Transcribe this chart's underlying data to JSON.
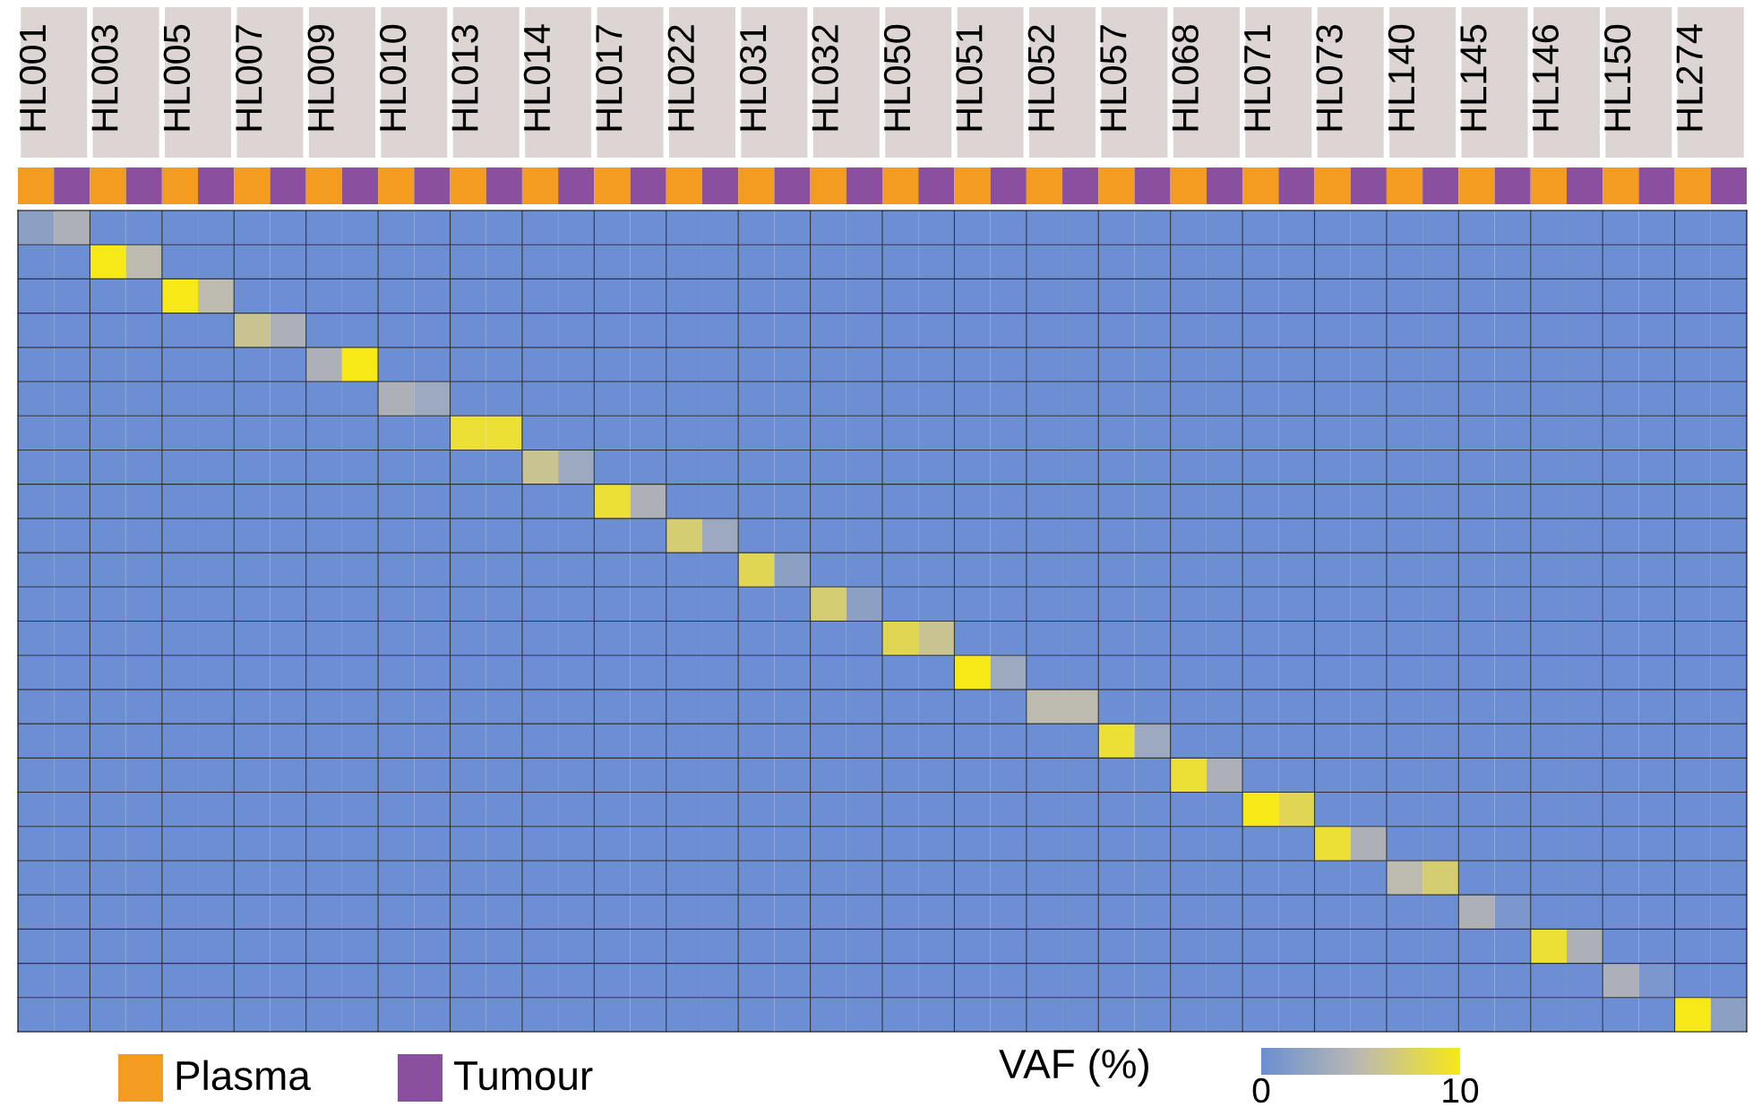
{
  "chart_data": {
    "type": "heatmap",
    "categories": [
      "HL001",
      null,
      "HL003",
      null,
      "HL005",
      null,
      "HL007",
      null,
      "HL009",
      null,
      "HL010",
      null,
      "HL013",
      null,
      "HL014",
      null,
      "HL017",
      null,
      "HL022",
      null,
      "HL031",
      null,
      "HL032",
      null,
      "HL050",
      null,
      "HL051",
      null,
      "HL052",
      null,
      "HL057",
      null,
      "HL068",
      null,
      "HL071",
      null,
      "HL073",
      null,
      "HL140",
      null,
      "HL145",
      null,
      "HL146",
      null,
      "HL150",
      null,
      "HL274",
      null
    ],
    "colors": [
      "#f39c1f",
      "#8b4f9f",
      "#f39c1f",
      "#8b4f9f",
      "#f39c1f",
      "#8b4f9f",
      "#f39c1f",
      "#8b4f9f",
      "#f39c1f",
      "#8b4f9f",
      "#f39c1f",
      "#8b4f9f",
      "#f39c1f",
      "#8b4f9f",
      "#f39c1f",
      "#8b4f9f",
      "#f39c1f",
      "#8b4f9f",
      "#f39c1f",
      "#8b4f9f",
      "#f39c1f",
      "#8b4f9f",
      "#f39c1f",
      "#8b4f9f",
      "#f39c1f",
      "#8b4f9f",
      "#f39c1f",
      "#8b4f9f",
      "#f39c1f",
      "#8b4f9f",
      "#f39c1f",
      "#8b4f9f",
      "#f39c1f",
      "#8b4f9f",
      "#f39c1f",
      "#8b4f9f",
      "#f39c1f",
      "#8b4f9f",
      "#f39c1f",
      "#8b4f9f",
      "#f39c1f",
      "#8b4f9f",
      "#f39c1f",
      "#8b4f9f",
      "#f39c1f",
      "#8b4f9f",
      "#f39c1f",
      "#8b4f9f"
    ],
    "annotations": [
      "Plasma",
      "Tumour"
    ],
    "y_categories": [
      null,
      null,
      null,
      null,
      null,
      null,
      null,
      null,
      null,
      null,
      null,
      null,
      null,
      null,
      null,
      null,
      null,
      null,
      null,
      null,
      null,
      null,
      null,
      null
    ],
    "clabel": "VAF (%)",
    "clim": [
      0,
      10
    ],
    "cticks": [
      0,
      10
    ],
    "grid": true,
    "cells": [
      [
        2,
        4,
        0,
        0,
        0,
        0,
        0,
        0,
        0,
        0,
        0,
        0,
        0,
        0,
        0,
        0,
        0,
        0,
        0,
        0,
        0,
        0,
        0,
        0,
        0,
        0,
        0,
        0,
        0,
        0,
        0,
        0,
        0,
        0,
        0,
        0,
        0,
        0,
        0,
        0,
        0,
        0,
        0,
        0,
        0,
        0,
        0,
        0
      ],
      [
        0,
        0,
        10,
        5,
        0,
        0,
        0,
        0,
        0,
        0,
        0,
        0,
        0,
        0,
        0,
        0,
        0,
        0,
        0,
        0,
        0,
        0,
        0,
        0,
        0,
        0,
        0,
        0,
        0,
        0,
        0,
        0,
        0,
        0,
        0,
        0,
        0,
        0,
        0,
        0,
        0,
        0,
        0,
        0,
        0,
        0,
        0,
        0
      ],
      [
        0,
        0,
        0,
        0,
        10,
        5,
        0,
        0,
        0,
        0,
        0,
        0,
        0,
        0,
        0,
        0,
        0,
        0,
        0,
        0,
        0,
        0,
        0,
        0,
        0,
        0,
        0,
        0,
        0,
        0,
        0,
        0,
        0,
        0,
        0,
        0,
        0,
        0,
        0,
        0,
        0,
        0,
        0,
        0,
        0,
        0,
        0,
        0
      ],
      [
        0,
        0,
        0,
        0,
        0,
        0,
        6,
        4,
        0,
        0,
        0,
        0,
        0,
        0,
        0,
        0,
        0,
        0,
        0,
        0,
        0,
        0,
        0,
        0,
        0,
        0,
        0,
        0,
        0,
        0,
        0,
        0,
        0,
        0,
        0,
        0,
        0,
        0,
        0,
        0,
        0,
        0,
        0,
        0,
        0,
        0,
        0,
        0
      ],
      [
        0,
        0,
        0,
        0,
        0,
        0,
        0,
        0,
        4,
        10,
        0,
        0,
        0,
        0,
        0,
        0,
        0,
        0,
        0,
        0,
        0,
        0,
        0,
        0,
        0,
        0,
        0,
        0,
        0,
        0,
        0,
        0,
        0,
        0,
        0,
        0,
        0,
        0,
        0,
        0,
        0,
        0,
        0,
        0,
        0,
        0,
        0,
        0
      ],
      [
        0,
        0,
        0,
        0,
        0,
        0,
        0,
        0,
        0,
        0,
        4,
        3,
        0,
        0,
        0,
        0,
        0,
        0,
        0,
        0,
        0,
        0,
        0,
        0,
        0,
        0,
        0,
        0,
        0,
        0,
        0,
        0,
        0,
        0,
        0,
        0,
        0,
        0,
        0,
        0,
        0,
        0,
        0,
        0,
        0,
        0,
        0,
        0
      ],
      [
        0,
        0,
        0,
        0,
        0,
        0,
        0,
        0,
        0,
        0,
        0,
        0,
        9,
        9,
        0,
        0,
        0,
        0,
        0,
        0,
        0,
        0,
        0,
        0,
        0,
        0,
        0,
        0,
        0,
        0,
        0,
        0,
        0,
        0,
        0,
        0,
        0,
        0,
        0,
        0,
        0,
        0,
        0,
        0,
        0,
        0,
        0,
        0
      ],
      [
        0,
        0,
        0,
        0,
        0,
        0,
        0,
        0,
        0,
        0,
        0,
        0,
        0,
        0,
        6,
        3,
        0,
        0,
        0,
        0,
        0,
        0,
        0,
        0,
        0,
        0,
        0,
        0,
        0,
        0,
        0,
        0,
        0,
        0,
        0,
        0,
        0,
        0,
        0,
        0,
        0,
        0,
        0,
        0,
        0,
        0,
        0,
        0
      ],
      [
        0,
        0,
        0,
        0,
        0,
        0,
        0,
        0,
        0,
        0,
        0,
        0,
        0,
        0,
        0,
        0,
        9,
        4,
        0,
        0,
        0,
        0,
        0,
        0,
        0,
        0,
        0,
        0,
        0,
        0,
        0,
        0,
        0,
        0,
        0,
        0,
        0,
        0,
        0,
        0,
        0,
        0,
        0,
        0,
        0,
        0,
        0,
        0
      ],
      [
        0,
        0,
        0,
        0,
        0,
        0,
        0,
        0,
        0,
        0,
        0,
        0,
        0,
        0,
        0,
        0,
        0,
        0,
        7,
        3,
        0,
        0,
        0,
        0,
        0,
        0,
        0,
        0,
        0,
        0,
        0,
        0,
        0,
        0,
        0,
        0,
        0,
        0,
        0,
        0,
        0,
        0,
        0,
        0,
        0,
        0,
        0,
        0
      ],
      [
        0,
        0,
        0,
        0,
        0,
        0,
        0,
        0,
        0,
        0,
        0,
        0,
        0,
        0,
        0,
        0,
        0,
        0,
        0,
        0,
        8,
        2,
        0,
        0,
        0,
        0,
        0,
        0,
        0,
        0,
        0,
        0,
        0,
        0,
        0,
        0,
        0,
        0,
        0,
        0,
        0,
        0,
        0,
        0,
        0,
        0,
        0,
        0
      ],
      [
        0,
        0,
        0,
        0,
        0,
        0,
        0,
        0,
        0,
        0,
        0,
        0,
        0,
        0,
        0,
        0,
        0,
        0,
        0,
        0,
        0,
        0,
        7,
        2,
        0,
        0,
        0,
        0,
        0,
        0,
        0,
        0,
        0,
        0,
        0,
        0,
        0,
        0,
        0,
        0,
        0,
        0,
        0,
        0,
        0,
        0,
        0,
        0
      ],
      [
        0,
        0,
        0,
        0,
        0,
        0,
        0,
        0,
        0,
        0,
        0,
        0,
        0,
        0,
        0,
        0,
        0,
        0,
        0,
        0,
        0,
        0,
        0,
        0,
        8,
        6,
        0,
        0,
        0,
        0,
        0,
        0,
        0,
        0,
        0,
        0,
        0,
        0,
        0,
        0,
        0,
        0,
        0,
        0,
        0,
        0,
        0,
        0
      ],
      [
        0,
        0,
        0,
        0,
        0,
        0,
        0,
        0,
        0,
        0,
        0,
        0,
        0,
        0,
        0,
        0,
        0,
        0,
        0,
        0,
        0,
        0,
        0,
        0,
        0,
        0,
        10,
        3,
        0,
        0,
        0,
        0,
        0,
        0,
        0,
        0,
        0,
        0,
        0,
        0,
        0,
        0,
        0,
        0,
        0,
        0,
        0,
        0
      ],
      [
        0,
        0,
        0,
        0,
        0,
        0,
        0,
        0,
        0,
        0,
        0,
        0,
        0,
        0,
        0,
        0,
        0,
        0,
        0,
        0,
        0,
        0,
        0,
        0,
        0,
        0,
        0,
        0,
        5,
        5,
        0,
        0,
        0,
        0,
        0,
        0,
        0,
        0,
        0,
        0,
        0,
        0,
        0,
        0,
        0,
        0,
        0,
        0
      ],
      [
        0,
        0,
        0,
        0,
        0,
        0,
        0,
        0,
        0,
        0,
        0,
        0,
        0,
        0,
        0,
        0,
        0,
        0,
        0,
        0,
        0,
        0,
        0,
        0,
        0,
        0,
        0,
        0,
        0,
        0,
        9,
        3,
        0,
        0,
        0,
        0,
        0,
        0,
        0,
        0,
        0,
        0,
        0,
        0,
        0,
        0,
        0,
        0
      ],
      [
        0,
        0,
        0,
        0,
        0,
        0,
        0,
        0,
        0,
        0,
        0,
        0,
        0,
        0,
        0,
        0,
        0,
        0,
        0,
        0,
        0,
        0,
        0,
        0,
        0,
        0,
        0,
        0,
        0,
        0,
        0,
        0,
        9,
        4,
        0,
        0,
        0,
        0,
        0,
        0,
        0,
        0,
        0,
        0,
        0,
        0,
        0,
        0
      ],
      [
        0,
        0,
        0,
        0,
        0,
        0,
        0,
        0,
        0,
        0,
        0,
        0,
        0,
        0,
        0,
        0,
        0,
        0,
        0,
        0,
        0,
        0,
        0,
        0,
        0,
        0,
        0,
        0,
        0,
        0,
        0,
        0,
        0,
        0,
        10,
        8,
        0,
        0,
        0,
        0,
        0,
        0,
        0,
        0,
        0,
        0,
        0,
        0
      ],
      [
        0,
        0,
        0,
        0,
        0,
        0,
        0,
        0,
        0,
        0,
        0,
        0,
        0,
        0,
        0,
        0,
        0,
        0,
        0,
        0,
        0,
        0,
        0,
        0,
        0,
        0,
        0,
        0,
        0,
        0,
        0,
        0,
        0,
        0,
        0,
        0,
        9,
        4,
        0,
        0,
        0,
        0,
        0,
        0,
        0,
        0,
        0,
        0
      ],
      [
        0,
        0,
        0,
        0,
        0,
        0,
        0,
        0,
        0,
        0,
        0,
        0,
        0,
        0,
        0,
        0,
        0,
        0,
        0,
        0,
        0,
        0,
        0,
        0,
        0,
        0,
        0,
        0,
        0,
        0,
        0,
        0,
        0,
        0,
        0,
        0,
        0,
        0,
        5,
        7,
        0,
        0,
        0,
        0,
        0,
        0,
        0,
        0
      ],
      [
        0,
        0,
        0,
        0,
        0,
        0,
        0,
        0,
        0,
        0,
        0,
        0,
        0,
        0,
        0,
        0,
        0,
        0,
        0,
        0,
        0,
        0,
        0,
        0,
        0,
        0,
        0,
        0,
        0,
        0,
        0,
        0,
        0,
        0,
        0,
        0,
        0,
        0,
        0,
        0,
        4,
        1,
        0,
        0,
        0,
        0,
        0,
        0
      ],
      [
        0,
        0,
        0,
        0,
        0,
        0,
        0,
        0,
        0,
        0,
        0,
        0,
        0,
        0,
        0,
        0,
        0,
        0,
        0,
        0,
        0,
        0,
        0,
        0,
        0,
        0,
        0,
        0,
        0,
        0,
        0,
        0,
        0,
        0,
        0,
        0,
        0,
        0,
        0,
        0,
        0,
        0,
        9,
        4,
        0,
        0,
        0,
        0
      ],
      [
        0,
        0,
        0,
        0,
        0,
        0,
        0,
        0,
        0,
        0,
        0,
        0,
        0,
        0,
        0,
        0,
        0,
        0,
        0,
        0,
        0,
        0,
        0,
        0,
        0,
        0,
        0,
        0,
        0,
        0,
        0,
        0,
        0,
        0,
        0,
        0,
        0,
        0,
        0,
        0,
        0,
        0,
        0,
        0,
        4,
        1,
        0,
        0
      ],
      [
        0,
        0,
        0,
        0,
        0,
        0,
        0,
        0,
        0,
        0,
        0,
        0,
        0,
        0,
        0,
        0,
        0,
        0,
        0,
        0,
        0,
        0,
        0,
        0,
        0,
        0,
        0,
        0,
        0,
        0,
        0,
        0,
        0,
        0,
        0,
        0,
        0,
        0,
        0,
        0,
        0,
        0,
        0,
        0,
        0,
        0,
        10,
        2
      ]
    ]
  }
}
